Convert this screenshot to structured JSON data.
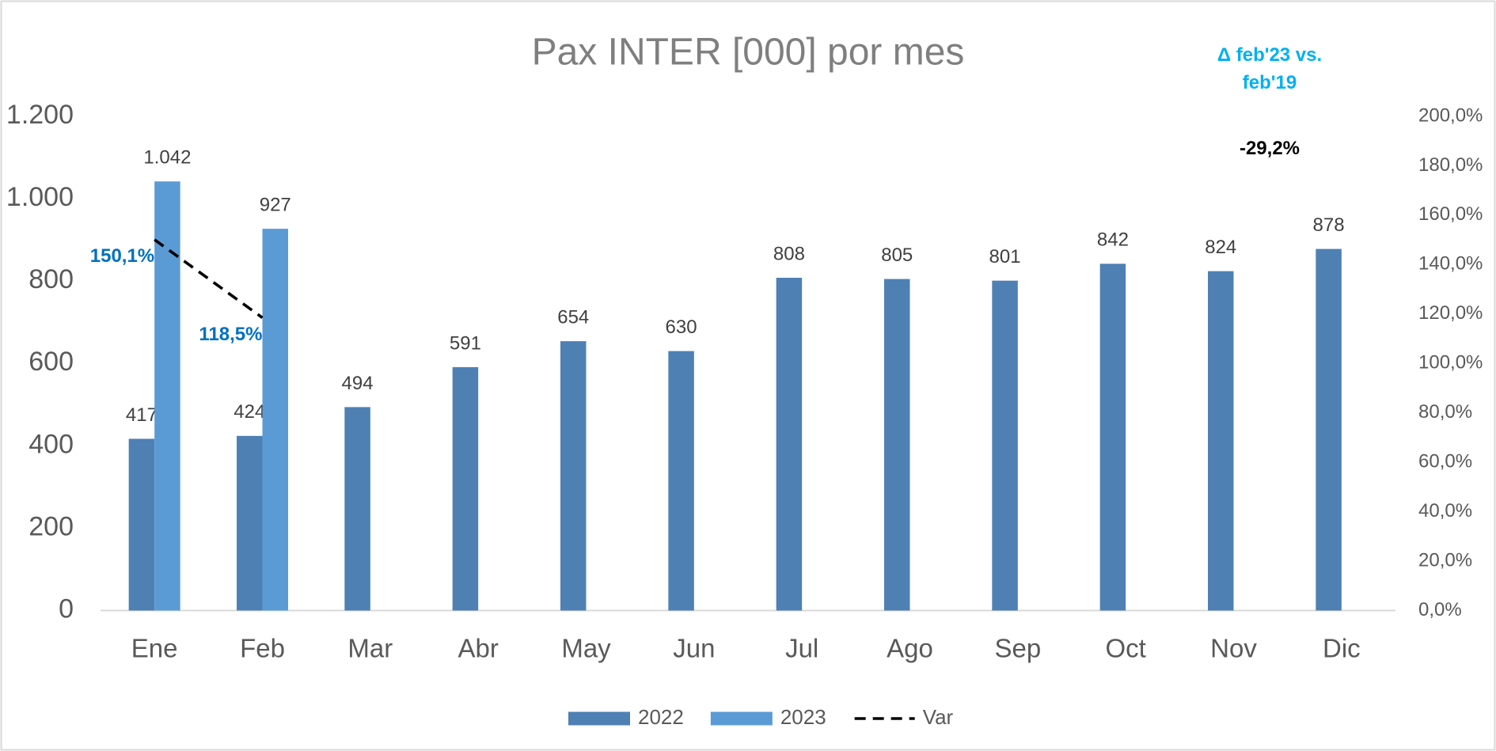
{
  "chart_data": {
    "type": "bar",
    "title": "Pax INTER [000] por mes",
    "annotation_title": "Δ feb'23 vs. feb'19",
    "annotation_value": "-29,2%",
    "categories": [
      "Ene",
      "Feb",
      "Mar",
      "Abr",
      "May",
      "Jun",
      "Jul",
      "Ago",
      "Sep",
      "Oct",
      "Nov",
      "Dic"
    ],
    "series": [
      {
        "name": "2022",
        "color": "#4e80b4",
        "type": "bar",
        "values": [
          417,
          424,
          494,
          591,
          654,
          630,
          808,
          805,
          801,
          842,
          824,
          878
        ]
      },
      {
        "name": "2023",
        "color": "#5b9bd5",
        "type": "bar",
        "values": [
          1042,
          927,
          null,
          null,
          null,
          null,
          null,
          null,
          null,
          null,
          null,
          null
        ],
        "value_labels": [
          "1.042",
          "927",
          null,
          null,
          null,
          null,
          null,
          null,
          null,
          null,
          null,
          null
        ]
      },
      {
        "name": "Var",
        "color": "#000000",
        "type": "line",
        "axis": "y2",
        "dashed": true,
        "label_color": "#0070c0",
        "values": [
          150.1,
          118.5,
          null,
          null,
          null,
          null,
          null,
          null,
          null,
          null,
          null,
          null
        ],
        "value_labels": [
          "150,1%",
          "118,5%",
          null,
          null,
          null,
          null,
          null,
          null,
          null,
          null,
          null,
          null
        ]
      }
    ],
    "ylim": [
      0,
      1200
    ],
    "yticks": [
      0,
      200,
      400,
      600,
      800,
      {
        "value": 1000,
        "label": "1.000"
      },
      {
        "value": 1200,
        "label": "1.200"
      }
    ],
    "y2lim": [
      0,
      200
    ],
    "y2ticks": [
      {
        "value": 0,
        "label": "0,0%"
      },
      {
        "value": 20,
        "label": "20,0%"
      },
      {
        "value": 40,
        "label": "40,0%"
      },
      {
        "value": 60,
        "label": "60,0%"
      },
      {
        "value": 80,
        "label": "80,0%"
      },
      {
        "value": 100,
        "label": "100,0%"
      },
      {
        "value": 120,
        "label": "120,0%"
      },
      {
        "value": 140,
        "label": "140,0%"
      },
      {
        "value": 160,
        "label": "160,0%"
      },
      {
        "value": 180,
        "label": "180,0%"
      },
      {
        "value": 200,
        "label": "200,0%"
      }
    ],
    "grid": false,
    "legend": "bottom"
  }
}
